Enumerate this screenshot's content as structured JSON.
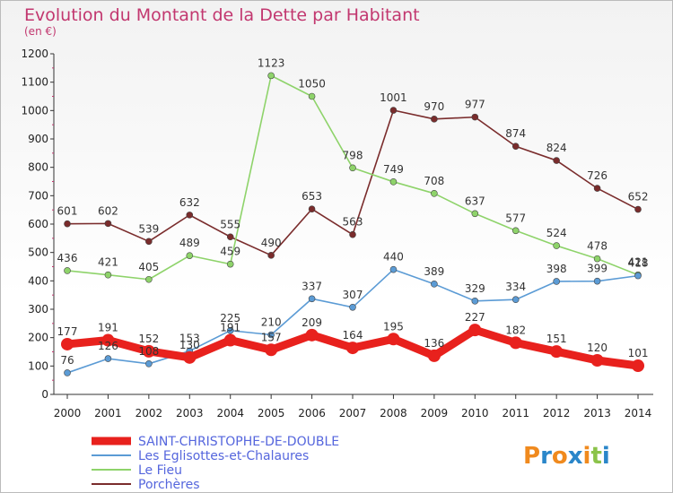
{
  "title": "Evolution du Montant de la Dette par Habitant",
  "subtitle": "(en €)",
  "logo": {
    "text": "Proxiti",
    "letters": [
      "P",
      "r",
      "o",
      "x",
      "i",
      "t",
      "i"
    ],
    "colors": [
      "#f08a1e",
      "#2a86c9",
      "#f08a1e",
      "#2a86c9",
      "#f08a1e",
      "#8bc34a",
      "#2a86c9"
    ]
  },
  "chart_data": {
    "type": "line",
    "x": [
      "2000",
      "2001",
      "2002",
      "2003",
      "2004",
      "2005",
      "2006",
      "2007",
      "2008",
      "2009",
      "2010",
      "2011",
      "2012",
      "2013",
      "2014"
    ],
    "ylim": [
      0,
      1200
    ],
    "yticks": [
      0,
      100,
      200,
      300,
      400,
      500,
      600,
      700,
      800,
      900,
      1000,
      1100,
      1200
    ],
    "grid": false,
    "legend_position": "bottom-left",
    "series": [
      {
        "name": "SAINT-CHRISTOPHE-DE-DOUBLE",
        "color": "#e8211d",
        "values": [
          177,
          191,
          152,
          130,
          191,
          157,
          209,
          164,
          195,
          136,
          227,
          182,
          151,
          120,
          101
        ],
        "labels": [
          "177",
          "191",
          "152",
          "130",
          "191",
          "157",
          "209",
          "164",
          "195",
          "136",
          "227",
          "182",
          "151",
          "120",
          "101"
        ]
      },
      {
        "name": "Les Eglisottes-et-Chalaures",
        "color": "#5b9bd5",
        "values": [
          76,
          126,
          108,
          153,
          225,
          210,
          337,
          307,
          440,
          389,
          329,
          334,
          398,
          399,
          418
        ],
        "labels": [
          "76",
          "126",
          "108",
          "153",
          "225",
          "210",
          "337",
          "307",
          "440",
          "389",
          "329",
          "334",
          "398",
          "399",
          "418"
        ]
      },
      {
        "name": "Le Fieu",
        "color": "#8ed36a",
        "values": [
          436,
          421,
          405,
          489,
          459,
          1123,
          1050,
          798,
          749,
          708,
          637,
          577,
          524,
          478,
          421
        ],
        "labels": [
          "436",
          "421",
          "405",
          "489",
          "459",
          "1123",
          "1050",
          "798",
          "749",
          "708",
          "637",
          "577",
          "524",
          "478",
          "421"
        ]
      },
      {
        "name": "Porchères",
        "color": "#7a2c2c",
        "values": [
          601,
          602,
          539,
          632,
          555,
          490,
          653,
          563,
          1001,
          970,
          977,
          874,
          824,
          726,
          652
        ],
        "labels": [
          "601",
          "602",
          "539",
          "632",
          "555",
          "490",
          "653",
          "563",
          "1001",
          "970",
          "977",
          "874",
          "824",
          "726",
          "652"
        ]
      }
    ]
  }
}
